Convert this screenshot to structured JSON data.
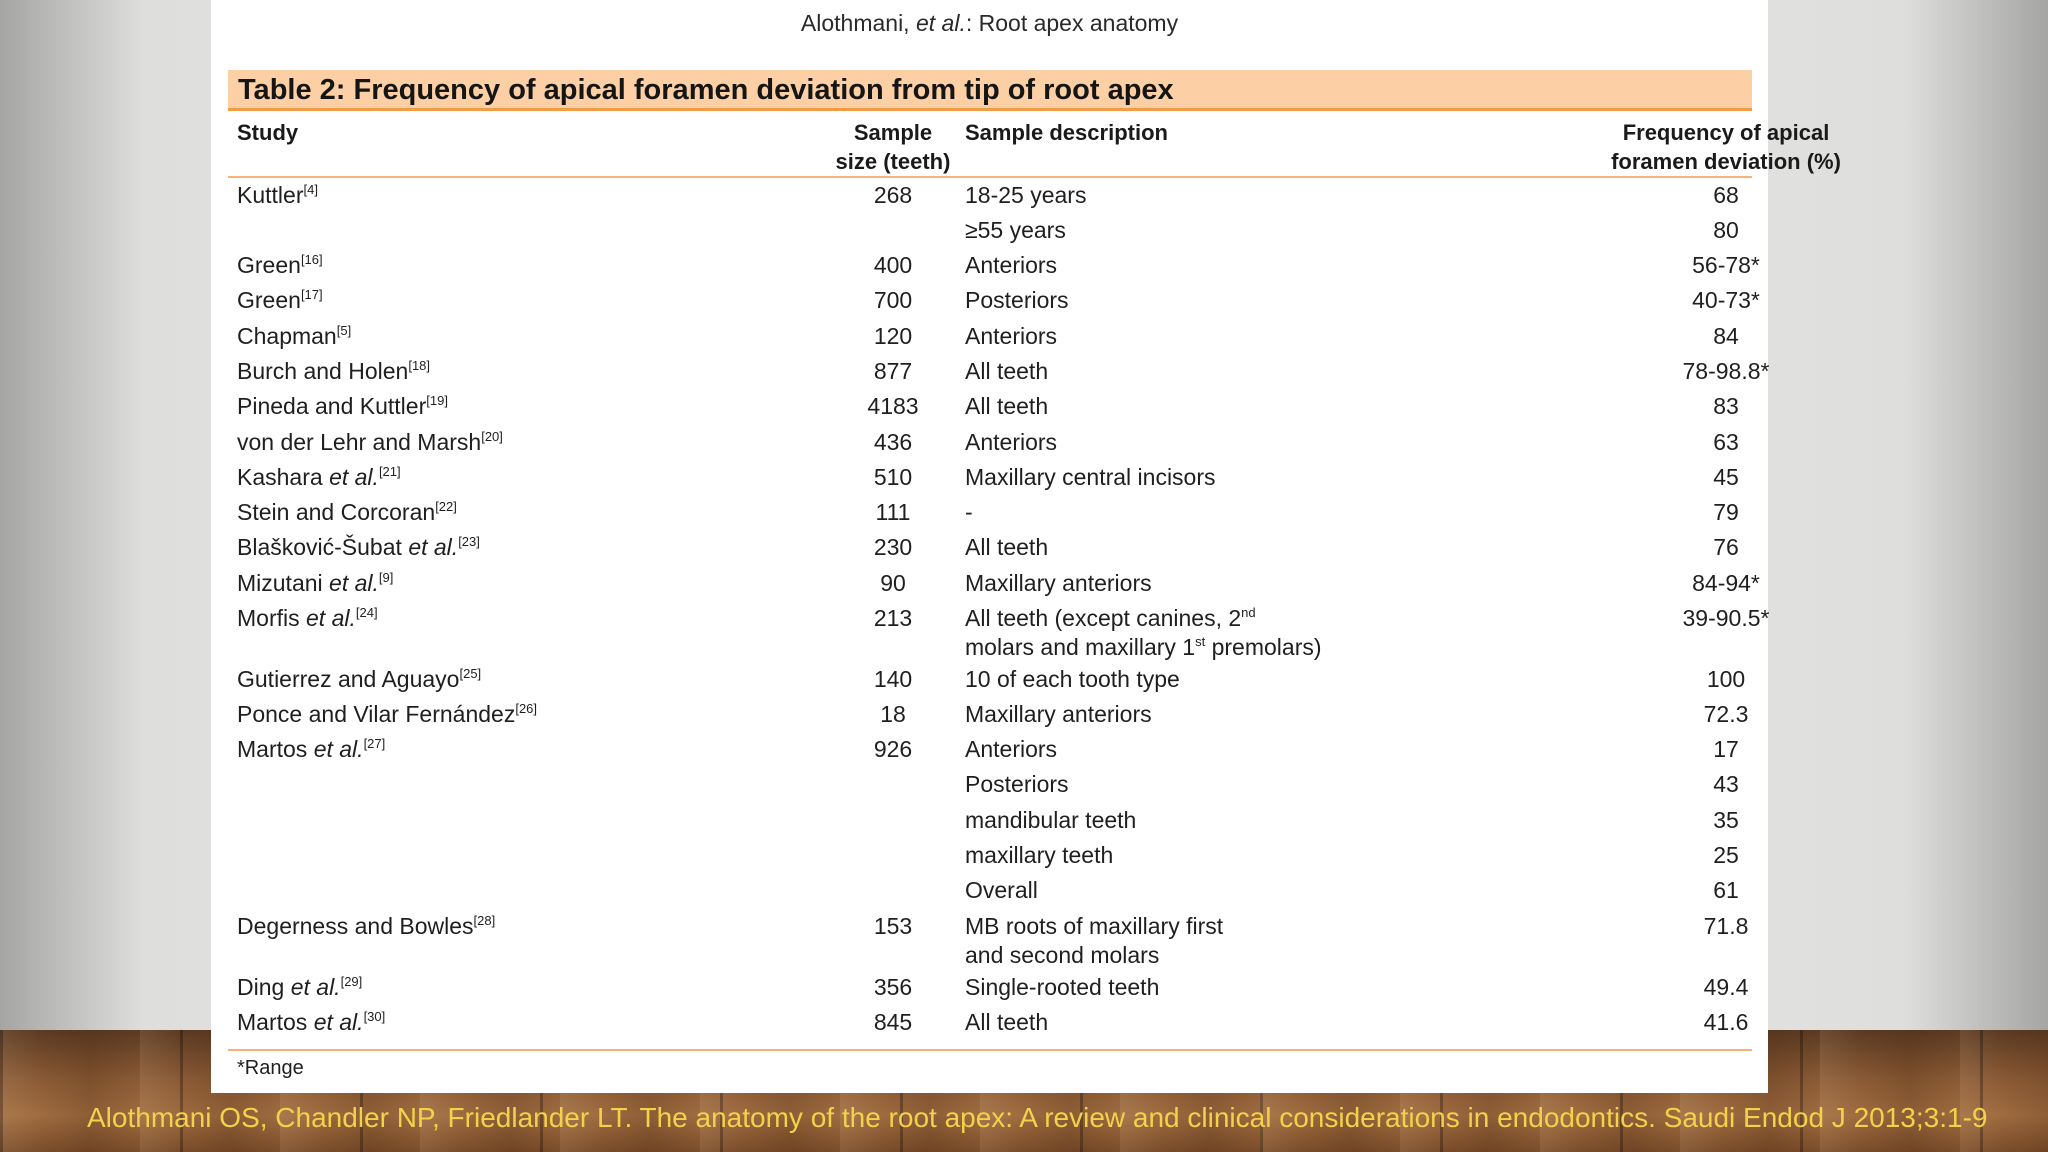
{
  "running_head": {
    "authors": "Alothmani,",
    "etal": "et al.",
    "rest": ": Root apex anatomy"
  },
  "table_title": "Table 2: Frequency of apical foramen deviation from tip of root apex",
  "headers": {
    "study": "Study",
    "size_l1": "Sample",
    "size_l2": "size (teeth)",
    "desc": "Sample description",
    "freq_l1": "Frequency of apical",
    "freq_l2": "foramen deviation (%)"
  },
  "rows": [
    {
      "name": "Kuttler",
      "etal": "",
      "ref": "[4]",
      "size": "268",
      "desc": "18-25 years",
      "freq": "68"
    },
    {
      "name": "",
      "etal": "",
      "ref": "",
      "size": "",
      "desc": "≥55 years",
      "freq": "80"
    },
    {
      "name": "Green",
      "etal": "",
      "ref": "[16]",
      "size": "400",
      "desc": "Anteriors",
      "freq": "56-78*"
    },
    {
      "name": "Green",
      "etal": "",
      "ref": "[17]",
      "size": "700",
      "desc": "Posteriors",
      "freq": "40-73*"
    },
    {
      "name": "Chapman",
      "etal": "",
      "ref": "[5]",
      "size": "120",
      "desc": "Anteriors",
      "freq": "84"
    },
    {
      "name": "Burch and Holen",
      "etal": "",
      "ref": "[18]",
      "size": "877",
      "desc": "All teeth",
      "freq": "78-98.8*"
    },
    {
      "name": "Pineda and Kuttler",
      "etal": "",
      "ref": "[19]",
      "size": "4183",
      "desc": "All teeth",
      "freq": "83"
    },
    {
      "name": "von der Lehr and Marsh",
      "etal": "",
      "ref": "[20]",
      "size": "436",
      "desc": "Anteriors",
      "freq": "63"
    },
    {
      "name": "Kashara ",
      "etal": "et al.",
      "ref": "[21]",
      "size": "510",
      "desc": "Maxillary central incisors",
      "freq": "45"
    },
    {
      "name": "Stein and Corcoran",
      "etal": "",
      "ref": "[22]",
      "size": "111",
      "desc": "-",
      "freq": "79"
    },
    {
      "name": "Blašković-Šubat ",
      "etal": "et al.",
      "ref": "[23]",
      "size": "230",
      "desc": "All teeth",
      "freq": "76"
    },
    {
      "name": "Mizutani ",
      "etal": "et al.",
      "ref": "[9]",
      "size": "90",
      "desc": "Maxillary anteriors",
      "freq": "84-94*"
    },
    {
      "name": "Morfis ",
      "etal": "et al.",
      "ref": "[24]",
      "size": "213",
      "desc": "All teeth (except canines, 2",
      "desc_sup": "nd",
      "desc2a": "molars and maxillary 1",
      "desc2_sup": "st",
      "desc2b": " premolars)",
      "freq": "39-90.5*"
    },
    {
      "name": "Gutierrez and Aguayo",
      "etal": "",
      "ref": "[25]",
      "size": "140",
      "desc": "10 of each tooth type",
      "freq": "100"
    },
    {
      "name": "Ponce and Vilar Fernández",
      "etal": "",
      "ref": "[26]",
      "size": "18",
      "desc": "Maxillary anteriors",
      "freq": "72.3"
    },
    {
      "name": "Martos ",
      "etal": "et al.",
      "ref": "[27]",
      "size": "926",
      "desc": "Anteriors",
      "freq": "17"
    },
    {
      "name": "",
      "etal": "",
      "ref": "",
      "size": "",
      "desc": "Posteriors",
      "freq": "43"
    },
    {
      "name": "",
      "etal": "",
      "ref": "",
      "size": "",
      "desc": "mandibular teeth",
      "freq": "35"
    },
    {
      "name": "",
      "etal": "",
      "ref": "",
      "size": "",
      "desc": "maxillary teeth",
      "freq": "25"
    },
    {
      "name": "",
      "etal": "",
      "ref": "",
      "size": "",
      "desc": "Overall",
      "freq": "61"
    },
    {
      "name": "Degerness and Bowles",
      "etal": "",
      "ref": "[28]",
      "size": "153",
      "desc": "MB roots of maxillary first",
      "desc2a": "and second molars",
      "freq": "71.8"
    },
    {
      "name": "Ding ",
      "etal": "et al.",
      "ref": "[29]",
      "size": "356",
      "desc": "Single-rooted teeth",
      "freq": "49.4"
    },
    {
      "name": "Martos ",
      "etal": "et al.",
      "ref": "[30]",
      "size": "845",
      "desc": "All teeth",
      "freq": "41.6"
    }
  ],
  "footnote": "*Range",
  "citation": "Alothmani OS, Chandler NP, Friedlander LT. The anatomy of the root apex: A review and clinical considerations in endodontics. Saudi Endod J 2013;3:1-9"
}
